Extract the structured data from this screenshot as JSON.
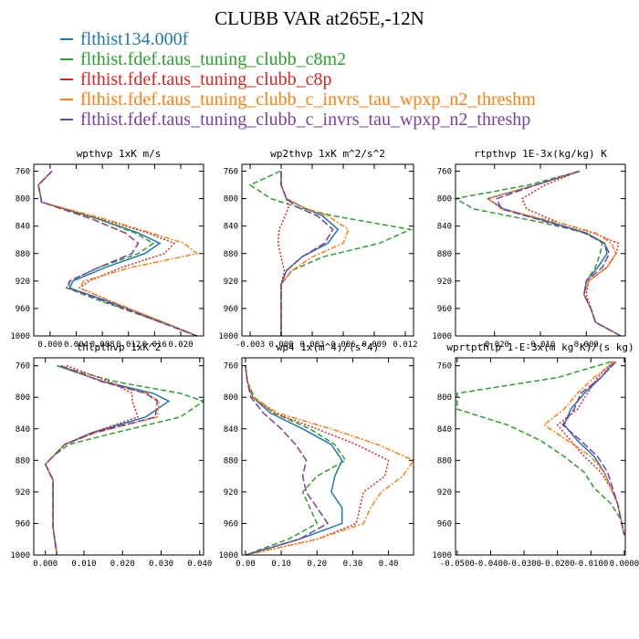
{
  "figure": {
    "title": "CLUBB VAR at265E,-12N"
  },
  "legend": [
    {
      "label": "flthist134.000f",
      "color": "#1f77b4",
      "dash": ""
    },
    {
      "label": "flthist.fdef.taus_tuning_clubb_c8m2",
      "color": "#2ca02c",
      "dash": "6,3"
    },
    {
      "label": "flthist.fdef.taus_tuning_clubb_c8p",
      "color": "#d62728",
      "dash": "2,2"
    },
    {
      "label": "flthist.fdef.taus_tuning_clubb_c_invrs_tau_wpxp_n2_threshm",
      "color": "#ff7f0e",
      "dash": "6,2,2,2"
    },
    {
      "label": "flthist.fdef.taus_tuning_clubb_c_invrs_tau_wpxp_n2_threshp",
      "color": "#7b3fa0",
      "dash": "8,3"
    }
  ],
  "chart_data": [
    {
      "type": "line",
      "title": "wpthvp  1xK m/s",
      "ylim": [
        1000,
        750
      ],
      "yticks": [
        760,
        800,
        840,
        880,
        920,
        960,
        1000
      ],
      "xlim": [
        -0.0025,
        0.0235
      ],
      "xticks": [
        0.0,
        0.004,
        0.008,
        0.012,
        0.016,
        0.02
      ],
      "xtick_labels": [
        "0.000",
        "0.004",
        "0.008",
        "0.012",
        "0.016",
        "0.020"
      ],
      "y": [
        760,
        780,
        805,
        830,
        850,
        865,
        880,
        900,
        920,
        930,
        950,
        975,
        1000
      ],
      "series": [
        {
          "values": [
            0.0003,
            -0.0018,
            -0.0013,
            0.0075,
            0.0135,
            0.0168,
            0.0145,
            0.0085,
            0.0035,
            0.003,
            0.009,
            0.016,
            0.0225
          ]
        },
        {
          "values": [
            0.0003,
            -0.0018,
            -0.0013,
            0.0075,
            0.013,
            0.0158,
            0.0135,
            0.0075,
            0.003,
            0.0025,
            0.008,
            0.0155,
            0.0225
          ]
        },
        {
          "values": [
            0.0003,
            -0.0018,
            -0.0013,
            0.008,
            0.015,
            0.019,
            0.0175,
            0.011,
            0.006,
            0.0045,
            0.0095,
            0.016,
            0.0225
          ]
        },
        {
          "values": [
            0.0003,
            -0.0018,
            -0.0013,
            0.0085,
            0.0155,
            0.0205,
            0.0225,
            0.0125,
            0.0052,
            0.0045,
            0.0095,
            0.016,
            0.0225
          ]
        },
        {
          "values": [
            0.0003,
            -0.0018,
            -0.0013,
            0.0065,
            0.0115,
            0.0135,
            0.0125,
            0.0075,
            0.003,
            0.0028,
            0.0085,
            0.0155,
            0.0225
          ]
        }
      ]
    },
    {
      "type": "line",
      "title": "wp2thvp  1xK m^2/s^2",
      "ylim": [
        1000,
        750
      ],
      "yticks": [
        760,
        800,
        840,
        880,
        920,
        960,
        1000
      ],
      "xlim": [
        -0.0038,
        0.0128
      ],
      "xticks": [
        -0.003,
        0.0,
        0.003,
        0.006,
        0.009,
        0.012
      ],
      "xtick_labels": [
        "-0.003",
        "0.000",
        "0.003",
        "0.006",
        "0.009",
        "0.012"
      ],
      "y": [
        760,
        780,
        800,
        812,
        825,
        845,
        865,
        885,
        905,
        925,
        950,
        975,
        1000
      ],
      "series": [
        {
          "values": [
            0.0,
            0.0,
            0.0005,
            0.002,
            0.004,
            0.0055,
            0.0045,
            0.002,
            0.0005,
            0.0,
            0.0,
            0.0,
            0.0
          ]
        },
        {
          "values": [
            -0.0001,
            -0.003,
            -0.001,
            0.0015,
            0.005,
            0.0125,
            0.0095,
            0.004,
            0.001,
            0.0,
            0.0,
            0.0,
            0.0
          ]
        },
        {
          "values": [
            0.0,
            0.0,
            0.0005,
            0.0007,
            0.0004,
            -0.0002,
            -0.0003,
            0.0,
            0.0003,
            0.0,
            0.0,
            0.0,
            0.0
          ]
        },
        {
          "values": [
            0.0,
            0.0,
            0.0005,
            0.002,
            0.0045,
            0.0065,
            0.006,
            0.003,
            0.001,
            0.0,
            0.0,
            0.0,
            0.0
          ]
        },
        {
          "values": [
            0.0,
            0.0,
            0.0005,
            0.0015,
            0.0035,
            0.005,
            0.0042,
            0.002,
            0.0005,
            0.0,
            0.0,
            0.0,
            0.0
          ]
        }
      ]
    },
    {
      "type": "line",
      "title": "rtpthvp  1E-3x(kg/kg) K",
      "ylim": [
        1000,
        750
      ],
      "yticks": [
        760,
        800,
        840,
        880,
        920,
        960,
        1000
      ],
      "xlim": [
        -0.0285,
        0.0085
      ],
      "xticks": [
        -0.02,
        -0.01,
        0.0
      ],
      "xtick_labels": [
        "-0.020",
        "-0.010",
        "0.000"
      ],
      "y": [
        760,
        780,
        800,
        815,
        835,
        850,
        865,
        880,
        900,
        920,
        940,
        960,
        980,
        1000
      ],
      "series": [
        {
          "values": [
            -0.0015,
            -0.011,
            -0.0215,
            -0.018,
            -0.0075,
            0.0,
            0.004,
            0.0045,
            0.0025,
            0.0,
            -0.0005,
            0.001,
            0.002,
            0.0075
          ]
        },
        {
          "values": [
            -0.0015,
            -0.0125,
            -0.0285,
            -0.0245,
            -0.0095,
            0.0,
            0.0035,
            0.003,
            0.002,
            0.0,
            -0.0005,
            0.001,
            0.002,
            0.0075
          ]
        },
        {
          "values": [
            -0.0015,
            -0.009,
            -0.014,
            -0.013,
            -0.006,
            0.0015,
            0.007,
            0.0065,
            0.0045,
            0.0005,
            0.0,
            0.001,
            0.002,
            0.0075
          ]
        },
        {
          "values": [
            -0.0015,
            -0.011,
            -0.0215,
            -0.0185,
            -0.006,
            0.002,
            0.0055,
            0.0065,
            0.0045,
            0.0005,
            -0.0005,
            0.001,
            0.002,
            0.0075
          ]
        },
        {
          "values": [
            -0.0015,
            -0.011,
            -0.0195,
            -0.0185,
            -0.008,
            -0.0005,
            0.004,
            0.005,
            0.0035,
            0.0,
            -0.0005,
            0.001,
            0.002,
            0.0075
          ]
        }
      ]
    },
    {
      "type": "line",
      "title": "thlpthvp  1xK^2",
      "ylim": [
        1000,
        750
      ],
      "yticks": [
        760,
        800,
        840,
        880,
        920,
        960,
        1000
      ],
      "xlim": [
        -0.003,
        0.041
      ],
      "xticks": [
        0.0,
        0.01,
        0.02,
        0.03,
        0.04
      ],
      "xtick_labels": [
        "0.000",
        "0.010",
        "0.020",
        "0.030",
        "0.040"
      ],
      "y": [
        760,
        780,
        795,
        805,
        825,
        845,
        860,
        875,
        885,
        905,
        935,
        965,
        1000
      ],
      "series": [
        {
          "values": [
            0.003,
            0.015,
            0.028,
            0.032,
            0.026,
            0.012,
            0.005,
            0.002,
            0.0,
            0.002,
            0.002,
            0.002,
            0.003
          ]
        },
        {
          "values": [
            0.003,
            0.018,
            0.035,
            0.041,
            0.035,
            0.018,
            0.006,
            0.002,
            0.0,
            0.002,
            0.002,
            0.002,
            0.003
          ]
        },
        {
          "values": [
            0.0055,
            0.0165,
            0.0225,
            0.0225,
            0.024,
            0.012,
            0.005,
            0.002,
            0.0,
            0.002,
            0.002,
            0.002,
            0.003
          ]
        },
        {
          "values": [
            0.004,
            0.0145,
            0.0265,
            0.0295,
            0.029,
            0.013,
            0.005,
            0.002,
            0.0,
            0.002,
            0.002,
            0.002,
            0.003
          ]
        },
        {
          "values": [
            0.004,
            0.0145,
            0.026,
            0.029,
            0.0285,
            0.0125,
            0.005,
            0.002,
            0.0,
            0.002,
            0.002,
            0.002,
            0.003
          ]
        }
      ]
    },
    {
      "type": "line",
      "title": "wp4  1x(m^4)/(s^4)",
      "ylim": [
        1000,
        750
      ],
      "yticks": [
        760,
        800,
        840,
        880,
        920,
        960,
        1000
      ],
      "xlim": [
        -0.01,
        0.47
      ],
      "xticks": [
        0.0,
        0.1,
        0.2,
        0.3,
        0.4
      ],
      "xtick_labels": [
        "0.00",
        "0.10",
        "0.20",
        "0.30",
        "0.40"
      ],
      "y": [
        760,
        780,
        800,
        820,
        840,
        860,
        880,
        900,
        920,
        940,
        960,
        980,
        1000
      ],
      "series": [
        {
          "values": [
            0.0,
            0.005,
            0.02,
            0.07,
            0.16,
            0.24,
            0.27,
            0.25,
            0.24,
            0.27,
            0.27,
            0.15,
            0.0
          ]
        },
        {
          "values": [
            0.0,
            0.005,
            0.025,
            0.08,
            0.18,
            0.25,
            0.28,
            0.2,
            0.16,
            0.18,
            0.2,
            0.12,
            0.0
          ]
        },
        {
          "values": [
            0.0,
            0.005,
            0.02,
            0.08,
            0.2,
            0.31,
            0.4,
            0.39,
            0.33,
            0.32,
            0.31,
            0.2,
            0.0
          ]
        },
        {
          "values": [
            0.0,
            0.005,
            0.02,
            0.09,
            0.24,
            0.37,
            0.47,
            0.44,
            0.38,
            0.35,
            0.33,
            0.2,
            0.0
          ]
        },
        {
          "values": [
            0.0,
            0.005,
            0.015,
            0.05,
            0.1,
            0.14,
            0.17,
            0.16,
            0.17,
            0.2,
            0.23,
            0.15,
            0.0
          ]
        }
      ]
    },
    {
      "type": "line",
      "title": "wprtpthlp  1-E-3x(m kg K)/(s kg)",
      "ylim": [
        1000,
        750
      ],
      "yticks": [
        760,
        800,
        840,
        880,
        920,
        960,
        1000
      ],
      "xlim": [
        -0.0505,
        0.0003
      ],
      "xticks": [
        -0.05,
        -0.04,
        -0.03,
        -0.02,
        -0.01,
        0.0
      ],
      "xtick_labels": [
        "-0.0500",
        "-0.0400",
        "-0.0300",
        "-0.0200",
        "-0.0100",
        "0.0000"
      ],
      "y": [
        755,
        775,
        795,
        815,
        835,
        855,
        875,
        895,
        915,
        935,
        955,
        975
      ],
      "series": [
        {
          "values": [
            -0.003,
            -0.007,
            -0.012,
            -0.016,
            -0.018,
            -0.014,
            -0.009,
            -0.006,
            -0.004,
            -0.002,
            -0.001,
            0.0
          ]
        },
        {
          "values": [
            -0.004,
            -0.02,
            -0.05,
            -0.05,
            -0.035,
            -0.025,
            -0.018,
            -0.012,
            -0.009,
            -0.004,
            -0.001,
            0.0
          ]
        },
        {
          "values": [
            -0.0035,
            -0.008,
            -0.011,
            -0.014,
            -0.02,
            -0.016,
            -0.012,
            -0.007,
            -0.004,
            -0.002,
            -0.001,
            0.0
          ]
        },
        {
          "values": [
            -0.003,
            -0.009,
            -0.014,
            -0.018,
            -0.024,
            -0.017,
            -0.01,
            -0.006,
            -0.004,
            -0.002,
            -0.001,
            0.0
          ]
        },
        {
          "values": [
            -0.0025,
            -0.007,
            -0.013,
            -0.015,
            -0.0185,
            -0.013,
            -0.008,
            -0.005,
            -0.0035,
            -0.002,
            -0.001,
            0.0
          ]
        }
      ]
    }
  ]
}
